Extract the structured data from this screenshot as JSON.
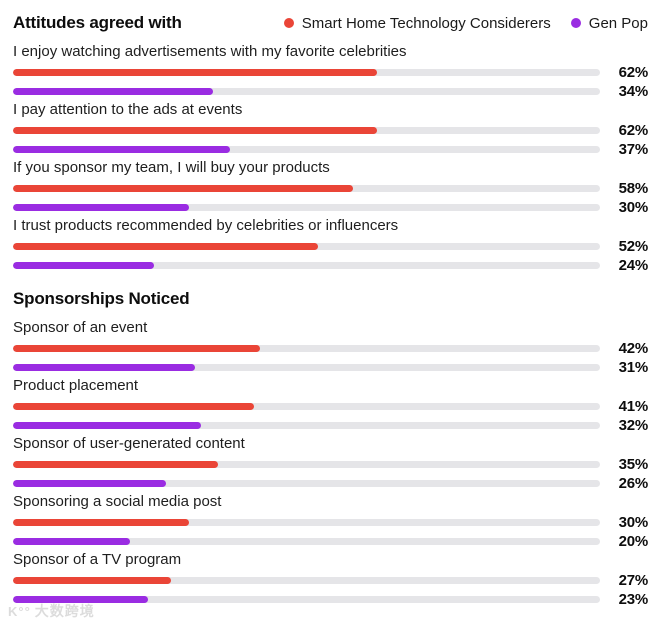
{
  "header": {
    "title": "Attitudes agreed with"
  },
  "legend": [
    {
      "label": "Smart Home Technology Considerers",
      "color": "#ea4537"
    },
    {
      "label": "Gen Pop",
      "color": "#9a2ce2"
    }
  ],
  "colors": {
    "series1": "#ea4537",
    "series2": "#9a2ce2",
    "track": "#e5e5e8",
    "text": "#141414",
    "value_text": "#0d0d0d"
  },
  "watermark": {
    "icon": "K°°",
    "text": "大数跨境"
  },
  "chart_data": {
    "type": "bar",
    "orientation": "horizontal",
    "unit": "%",
    "xlim": [
      0,
      100
    ],
    "grid": false,
    "legend_position": "top-right",
    "series_names": [
      "Smart Home Technology Considerers",
      "Gen Pop"
    ],
    "groups": [
      {
        "title": "Attitudes agreed with",
        "rows": [
          {
            "label": "I enjoy watching advertisements with my favorite celebrities",
            "values": [
              62,
              34
            ]
          },
          {
            "label": "I pay attention to the ads at events",
            "values": [
              62,
              37
            ]
          },
          {
            "label": "If you sponsor my team, I will buy your products",
            "values": [
              58,
              30
            ]
          },
          {
            "label": "I trust products recommended by celebrities or influencers",
            "values": [
              52,
              24
            ]
          }
        ]
      },
      {
        "title": "Sponsorships Noticed",
        "rows": [
          {
            "label": "Sponsor of an event",
            "values": [
              42,
              31
            ]
          },
          {
            "label": "Product placement",
            "values": [
              41,
              32
            ]
          },
          {
            "label": "Sponsor of user-generated content",
            "values": [
              35,
              26
            ]
          },
          {
            "label": "Sponsoring a social media post",
            "values": [
              30,
              20
            ]
          },
          {
            "label": "Sponsor of a TV program",
            "values": [
              27,
              23
            ]
          }
        ]
      }
    ]
  }
}
